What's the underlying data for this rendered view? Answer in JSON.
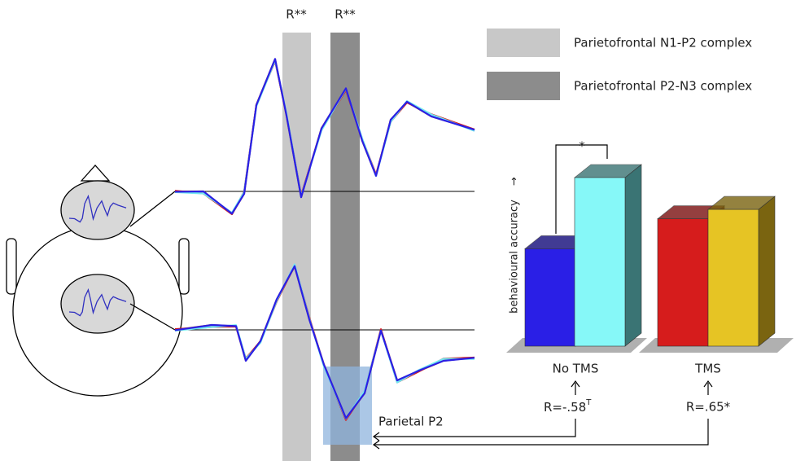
{
  "annotations": {
    "band_1": "R**",
    "band_2": "R**",
    "parietal": "Parietal P2"
  },
  "legend": [
    {
      "label": "Parietofrontal N1-P2 complex",
      "color": "#c8c8c8"
    },
    {
      "label": "Parietofrontal P2-N3 complex",
      "color": "#8c8c8c"
    }
  ],
  "chart_data": {
    "type": "bar3d",
    "ylabel": "behavioural accuracy",
    "categories": [
      null,
      null,
      null,
      null
    ],
    "values": [
      52,
      90,
      68,
      73
    ],
    "colors": [
      "#2a1fe6",
      "#86f8f8",
      "#d61c1c",
      "#e6c424"
    ],
    "side_colors": [
      "#120b7a",
      "#3a7474",
      "#7a1010",
      "#7a6410"
    ],
    "ylim": [
      0,
      100
    ],
    "group_labels": [
      "No TMS",
      "TMS"
    ],
    "significance": "*",
    "correlations": [
      {
        "text": "R=-.58",
        "sup": "T"
      },
      {
        "text": "R=.65*",
        "sup": null
      }
    ]
  }
}
